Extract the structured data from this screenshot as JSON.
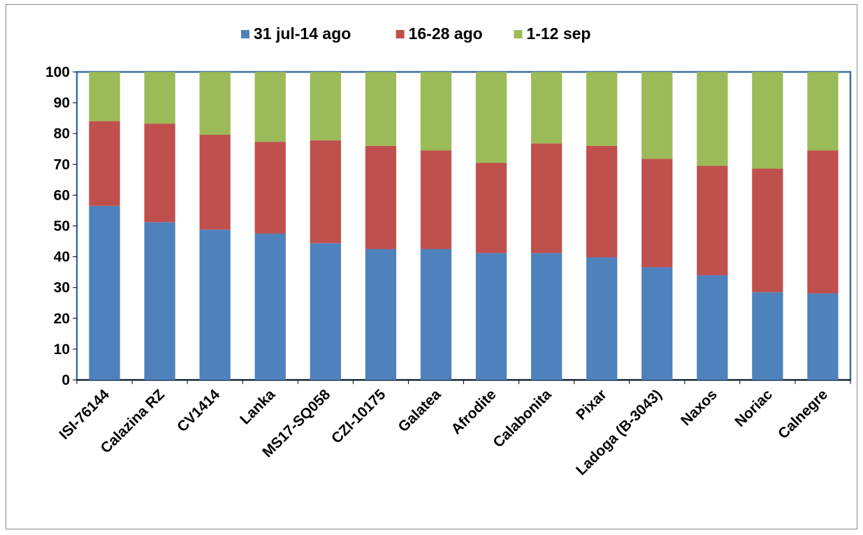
{
  "chart_data": {
    "type": "bar",
    "stacked": true,
    "title": "",
    "xlabel": "",
    "ylabel": "",
    "ylim": [
      0,
      100
    ],
    "yticks": [
      0,
      10,
      20,
      30,
      40,
      50,
      60,
      70,
      80,
      90,
      100
    ],
    "legend_position": "top",
    "grid": false,
    "categories": [
      "ISI-76144",
      "Calazina RZ",
      "CV1414",
      "Lanka",
      "MS17-SQ058",
      "CZI-10175",
      "Galatea",
      "Afrodite",
      "Calabonita",
      "Pixar",
      "Ladoga (B-3043)",
      "Naxos",
      "Noriac",
      "Calnegre"
    ],
    "series": [
      {
        "name": "31 jul-14 ago",
        "color": "#4f81bd",
        "values": [
          56.5,
          51.2,
          48.8,
          47.5,
          44.4,
          42.5,
          42.5,
          41.2,
          41.2,
          39.8,
          36.6,
          34.0,
          28.5,
          28.1
        ]
      },
      {
        "name": "16-28 ago",
        "color": "#c0504d",
        "values": [
          27.5,
          32.0,
          30.8,
          29.8,
          33.4,
          33.5,
          32.0,
          29.3,
          35.6,
          36.2,
          35.2,
          35.5,
          40.1,
          46.4
        ]
      },
      {
        "name": "1-12 sep",
        "color": "#9bbb59",
        "values": [
          16.0,
          16.8,
          20.4,
          22.7,
          22.2,
          24.0,
          25.5,
          29.5,
          23.2,
          24.0,
          28.2,
          30.5,
          31.4,
          25.5
        ]
      }
    ]
  }
}
